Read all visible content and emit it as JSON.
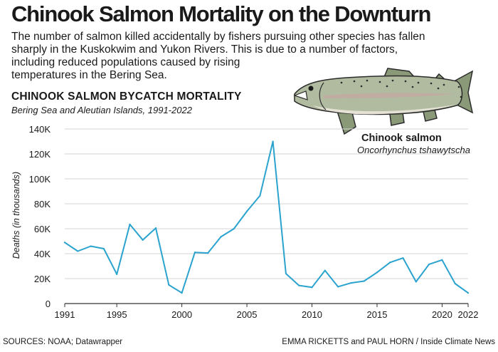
{
  "header": {
    "title": "Chinook Salmon Mortality on the Downturn",
    "intro_lines": [
      "The number of salmon killed accidentally by fishers pursuing other species has fallen",
      "sharply in the Kuskokwim and Yukon Rivers. This is due to a number of factors,",
      "including reduced populations caused by rising",
      "temperatures in the Bering Sea."
    ]
  },
  "illustration": {
    "name": "Chinook salmon",
    "latin": "Oncorhynchus tshawytscha"
  },
  "footer": {
    "sources": "SOURCES: NOAA; Datawrapper",
    "credit": "EMMA RICKETTS and PAUL HORN / Inside Climate News"
  },
  "colors": {
    "line": "#2ba3cf",
    "grid": "#d4d4d4",
    "axis": "#333333"
  },
  "chart_data": {
    "type": "line",
    "title": "CHINOOK SALMON BYCATCH MORTALITY",
    "subtitle": "Bering Sea and Aleutian Islands, 1991-2022",
    "xlabel": "",
    "ylabel": "Deaths (in thousands)",
    "xlim": [
      1991,
      2022
    ],
    "ylim": [
      0,
      140000
    ],
    "x_ticks": [
      1991,
      1995,
      2000,
      2005,
      2010,
      2015,
      2020,
      2022
    ],
    "y_ticks": [
      {
        "value": 0,
        "label": "0"
      },
      {
        "value": 20000,
        "label": "20K"
      },
      {
        "value": 40000,
        "label": "40K"
      },
      {
        "value": 60000,
        "label": "60K"
      },
      {
        "value": 80000,
        "label": "80K"
      },
      {
        "value": 100000,
        "label": "100K"
      },
      {
        "value": 120000,
        "label": "120K"
      },
      {
        "value": 140000,
        "label": "140K"
      }
    ],
    "grid": true,
    "x": [
      1991,
      1992,
      1993,
      1994,
      1995,
      1996,
      1997,
      1998,
      1999,
      2000,
      2001,
      2002,
      2003,
      2004,
      2005,
      2006,
      2007,
      2008,
      2009,
      2010,
      2011,
      2012,
      2013,
      2014,
      2015,
      2016,
      2017,
      2018,
      2019,
      2020,
      2021,
      2022
    ],
    "series": [
      {
        "values": [
          49000,
          42000,
          46000,
          44000,
          23500,
          63500,
          51000,
          60500,
          15000,
          8500,
          41000,
          40500,
          53500,
          60000,
          74000,
          86500,
          130000,
          24000,
          14500,
          13000,
          26500,
          13500,
          16500,
          18000,
          25000,
          33000,
          36500,
          17500,
          31500,
          35000,
          16000,
          8500
        ]
      }
    ]
  }
}
